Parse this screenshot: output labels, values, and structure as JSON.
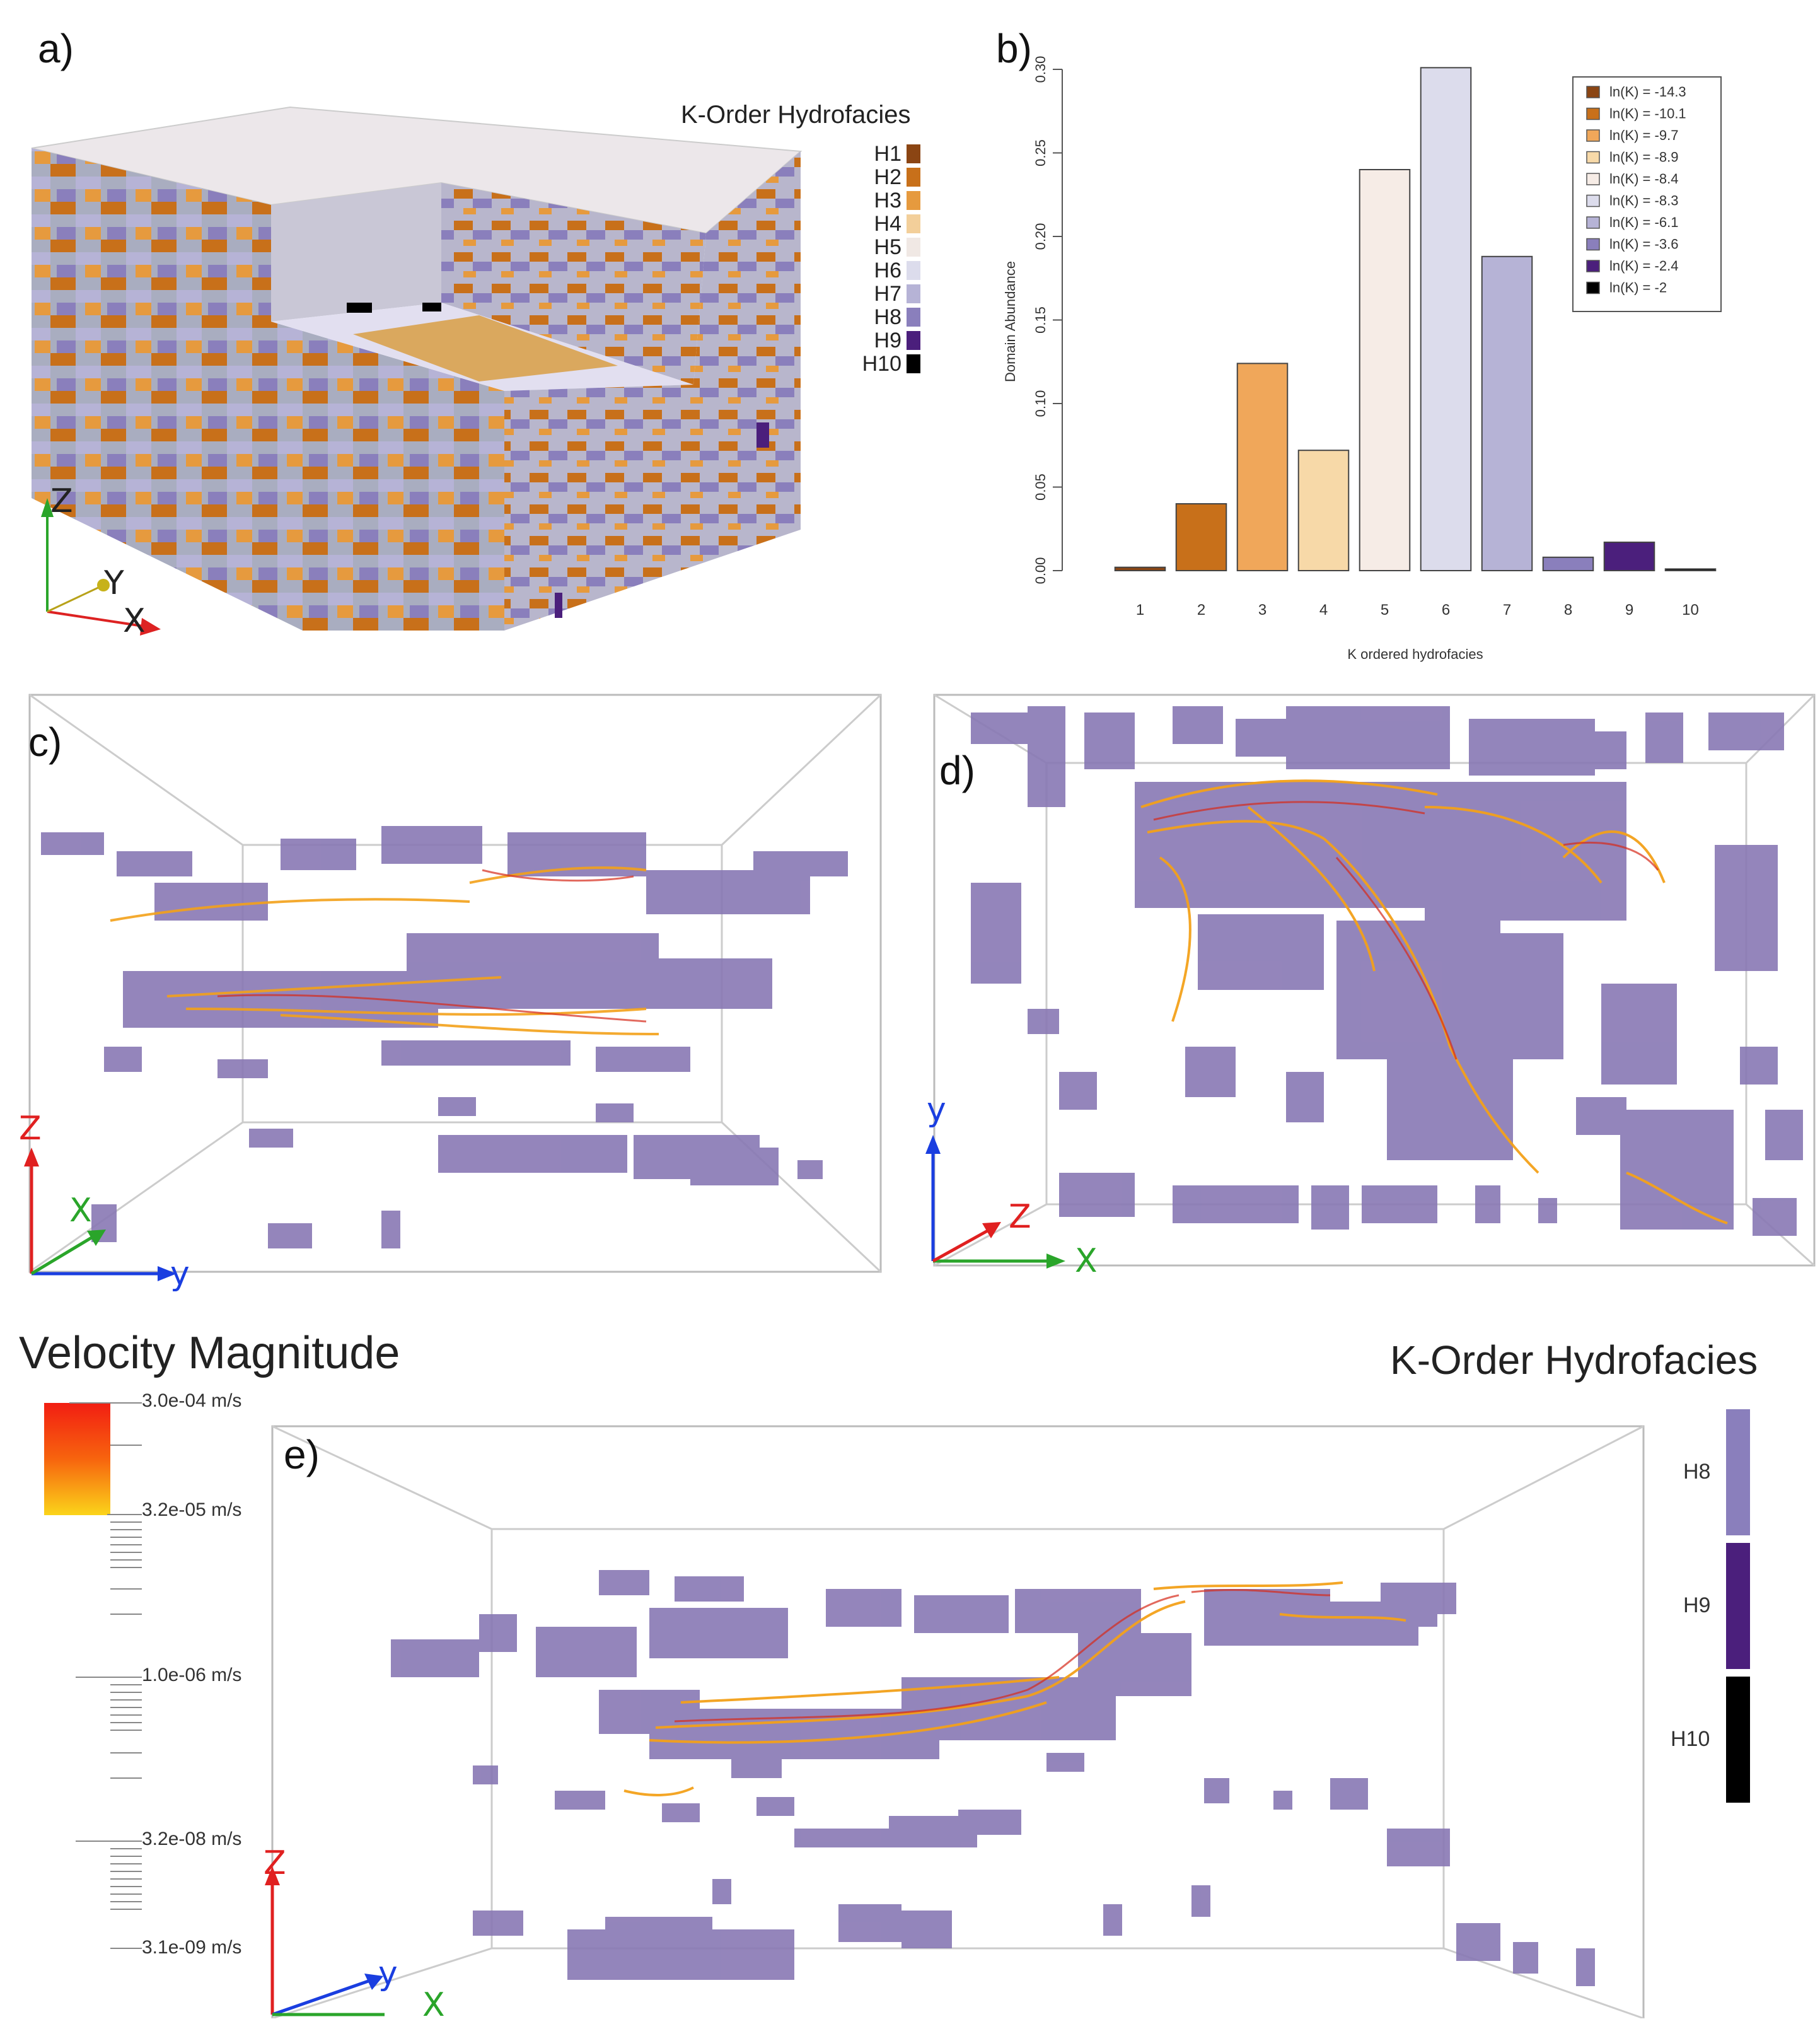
{
  "panels": {
    "a": {
      "label": "a)",
      "legend_title": "K-Order Hydrofacies",
      "legend": [
        {
          "name": "H1",
          "color": "#8b4513"
        },
        {
          "name": "H2",
          "color": "#c8701a"
        },
        {
          "name": "H3",
          "color": "#e69a3e"
        },
        {
          "name": "H4",
          "color": "#f3cf9a"
        },
        {
          "name": "H5",
          "color": "#f0e8e4"
        },
        {
          "name": "H6",
          "color": "#dcdcec"
        },
        {
          "name": "H7",
          "color": "#b6b3d6"
        },
        {
          "name": "H8",
          "color": "#8a7fbc"
        },
        {
          "name": "H9",
          "color": "#4b1f7c"
        },
        {
          "name": "H10",
          "color": "#000000"
        }
      ],
      "axes": {
        "z": "Z",
        "y": "Y",
        "x": "X"
      }
    },
    "b": {
      "label": "b)"
    },
    "c": {
      "label": "c)",
      "axes": {
        "z": "Z",
        "x": "X",
        "y": "y"
      }
    },
    "d": {
      "label": "d)",
      "axes": {
        "y": "y",
        "z": "Z",
        "x": "X"
      }
    },
    "e": {
      "label": "e)",
      "axes": {
        "z": "Z",
        "y": "y",
        "x": "X"
      },
      "velocity_title": "Velocity Magnitude",
      "velocity_ticks": [
        "3.0e-04 m/s",
        "3.2e-05 m/s",
        "1.0e-06 m/s",
        "3.2e-08 m/s",
        "3.1e-09 m/s"
      ],
      "hydro_title": "K-Order Hydrofacies",
      "hydro_legend": [
        {
          "name": "H8",
          "color": "#8a7fbc"
        },
        {
          "name": "H9",
          "color": "#4b1f7c"
        },
        {
          "name": "H10",
          "color": "#000000"
        }
      ]
    }
  },
  "chart_data": {
    "type": "bar",
    "categories": [
      "1",
      "2",
      "3",
      "4",
      "5",
      "6",
      "7",
      "8",
      "9",
      "10"
    ],
    "values": [
      0.002,
      0.04,
      0.124,
      0.072,
      0.24,
      0.301,
      0.188,
      0.008,
      0.017,
      0.001
    ],
    "colors": [
      "#8b4513",
      "#c8701a",
      "#f0a75a",
      "#f7d9a8",
      "#f6ece6",
      "#dcdcec",
      "#b6b3d6",
      "#8a7fbc",
      "#4b1f7c",
      "#000000"
    ],
    "xlabel": "K ordered hydrofacies",
    "ylabel": "Domain Abundance",
    "ylim": [
      0,
      0.3
    ],
    "yticks": [
      "0.00",
      "0.05",
      "0.10",
      "0.15",
      "0.20",
      "0.25",
      "0.30"
    ],
    "legend": [
      "ln(K) = -14.3",
      "ln(K) = -10.1",
      "ln(K) = -9.7",
      "ln(K) = -8.9",
      "ln(K) = -8.4",
      "ln(K) = -8.3",
      "ln(K) = -6.1",
      "ln(K) = -3.6",
      "ln(K) = -2.4",
      "ln(K) = -2"
    ],
    "legend_position": "top-right",
    "grid": false
  }
}
